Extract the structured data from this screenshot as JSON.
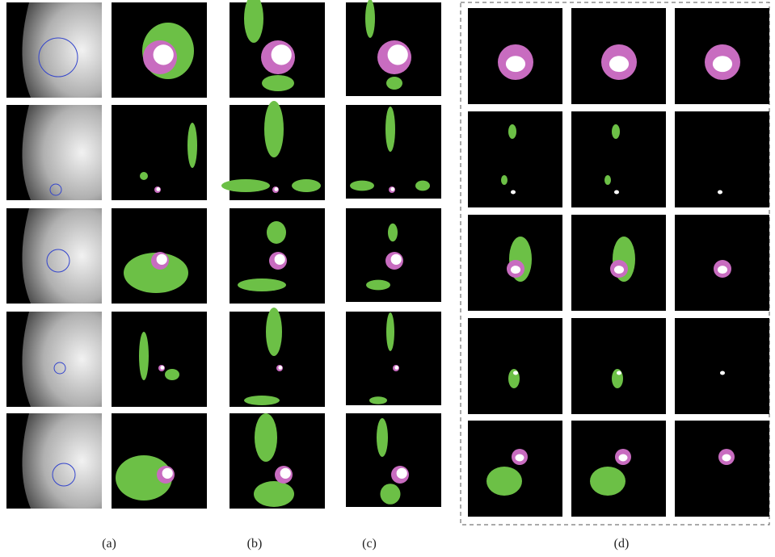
{
  "panels": {
    "labels": [
      "(a)",
      "(b)",
      "(c)",
      "(d)"
    ]
  }
}
